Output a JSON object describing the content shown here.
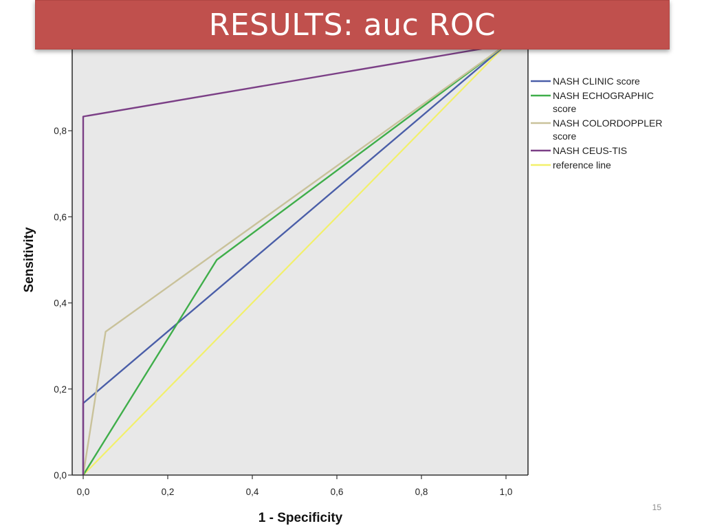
{
  "slide": {
    "title": "RESULTS: auc ROC",
    "page_number": "15"
  },
  "chart_data": {
    "type": "line",
    "title": "",
    "xlabel": "1 - Specificity",
    "ylabel": "Sensitivity",
    "xlim": [
      0,
      1
    ],
    "ylim": [
      0,
      1
    ],
    "x_ticks": [
      "0,0",
      "0,2",
      "0,4",
      "0,6",
      "0,8",
      "1,0"
    ],
    "y_ticks": [
      "0,0",
      "0,2",
      "0,4",
      "0,6",
      "0,8"
    ],
    "grid": false,
    "legend_position": "right",
    "background_color": "#e8e8e8",
    "series": [
      {
        "name": "NASH CLINIC score",
        "legend_lines": [
          "NASH CLINIC score"
        ],
        "color": "#4a5ea8",
        "x": [
          0.0,
          0.0,
          1.0
        ],
        "y": [
          0.0,
          0.167,
          1.0
        ]
      },
      {
        "name": "NASH ECHOGRAPHIC score",
        "legend_lines": [
          "NASH ECHOGRAPHIC",
          "score"
        ],
        "color": "#3fae4a",
        "x": [
          0.0,
          0.316,
          1.0
        ],
        "y": [
          0.0,
          0.5,
          1.0
        ]
      },
      {
        "name": "NASH COLORDOPPLER score",
        "legend_lines": [
          "NASH COLORDOPPLER",
          "score"
        ],
        "color": "#c9c29a",
        "x": [
          0.0,
          0.053,
          1.0
        ],
        "y": [
          0.0,
          0.333,
          1.0
        ]
      },
      {
        "name": "NASH CEUS-TIS",
        "legend_lines": [
          "NASH CEUS-TIS"
        ],
        "color": "#7b3f86",
        "x": [
          0.0,
          0.0,
          1.0
        ],
        "y": [
          0.0,
          0.833,
          1.0
        ]
      },
      {
        "name": "reference line",
        "legend_lines": [
          "reference line"
        ],
        "color": "#f2f06a",
        "x": [
          0.0,
          1.0
        ],
        "y": [
          0.0,
          1.0
        ]
      }
    ]
  }
}
